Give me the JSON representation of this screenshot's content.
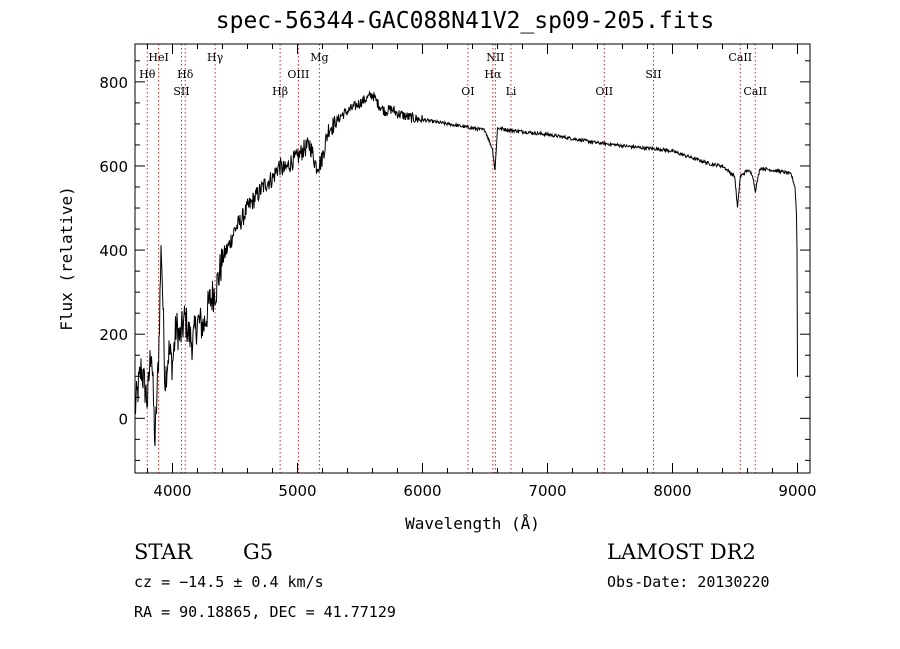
{
  "chart_data": {
    "type": "line",
    "title": "spec-56344-GAC088N41V2_sp09-205.fits",
    "xlabel": "Wavelength (Å)",
    "ylabel": "Flux (relative)",
    "xlim": [
      3700,
      9100
    ],
    "ylim": [
      -130,
      890
    ],
    "xticks": [
      "4000",
      "5000",
      "6000",
      "7000",
      "8000",
      "9000"
    ],
    "yticks": [
      "0",
      "200",
      "400",
      "600",
      "800"
    ],
    "grid": false,
    "series": [
      {
        "x": [
          3700,
          3750,
          3800,
          3830,
          3860,
          3890,
          3910,
          3940,
          3970,
          4000,
          4030,
          4060,
          4100,
          4130,
          4160,
          4200,
          4250,
          4300,
          4350,
          4400,
          4450,
          4500,
          4550,
          4600,
          4650,
          4700,
          4750,
          4800,
          4850,
          4900,
          4950,
          5000,
          5050,
          5100,
          5150,
          5190,
          5250,
          5300,
          5350,
          5400,
          5450,
          5500,
          5550,
          5600,
          5650,
          5700,
          5750,
          5800,
          5850,
          5900,
          5950,
          6000,
          6100,
          6200,
          6300,
          6400,
          6500,
          6560,
          6580,
          6600,
          6700,
          6800,
          6900,
          7000,
          7100,
          7200,
          7300,
          7400,
          7500,
          7600,
          7700,
          7800,
          7900,
          8000,
          8100,
          8200,
          8300,
          8400,
          8498,
          8520,
          8542,
          8600,
          8640,
          8662,
          8700,
          8800,
          8900,
          8950,
          8980,
          8995,
          9000
        ],
        "y": [
          20,
          120,
          40,
          180,
          -60,
          160,
          420,
          90,
          160,
          130,
          220,
          190,
          240,
          200,
          180,
          230,
          220,
          280,
          310,
          380,
          410,
          450,
          470,
          500,
          520,
          540,
          560,
          570,
          600,
          590,
          610,
          620,
          640,
          650,
          600,
          610,
          690,
          700,
          720,
          730,
          740,
          750,
          760,
          770,
          745,
          730,
          735,
          725,
          720,
          715,
          712,
          710,
          705,
          700,
          695,
          690,
          685,
          640,
          590,
          690,
          685,
          682,
          678,
          675,
          670,
          665,
          660,
          655,
          652,
          648,
          645,
          642,
          640,
          635,
          625,
          615,
          605,
          600,
          575,
          500,
          575,
          590,
          580,
          540,
          595,
          590,
          585,
          580,
          550,
          470,
          100
        ]
      }
    ],
    "lines": [
      {
        "label": "Hθ",
        "x": 3798,
        "row": 1
      },
      {
        "label": "HeI",
        "x": 3889,
        "row": 0
      },
      {
        "label": "Hδ",
        "x": 4102,
        "row": 1
      },
      {
        "label": "SII",
        "x": 4072,
        "row": 2
      },
      {
        "label": "Hγ",
        "x": 4341,
        "row": 0
      },
      {
        "label": "Hβ",
        "x": 4861,
        "row": 2
      },
      {
        "label": "OIII",
        "x": 5007,
        "row": 1
      },
      {
        "label": "Mg",
        "x": 5175,
        "row": 0
      },
      {
        "label": "OI",
        "x": 6363,
        "row": 2
      },
      {
        "label": "NII",
        "x": 6583,
        "row": 0
      },
      {
        "label": "Hα",
        "x": 6563,
        "row": 1
      },
      {
        "label": "Li",
        "x": 6708,
        "row": 2
      },
      {
        "label": "OII",
        "x": 7454,
        "row": 2
      },
      {
        "label": "SII",
        "x": 7848,
        "row": 1
      },
      {
        "label": "CaII",
        "x": 8542,
        "row": 0
      },
      {
        "label": "CaII",
        "x": 8662,
        "row": 2
      }
    ]
  },
  "footer": {
    "object_type": "STAR",
    "subclass": "G5",
    "survey": "LAMOST DR2",
    "cz": "cz = −14.5 ± 0.4 km/s",
    "obs_date": "Obs-Date: 20130220",
    "coords": "RA =  90.18865, DEC =  41.77129"
  }
}
